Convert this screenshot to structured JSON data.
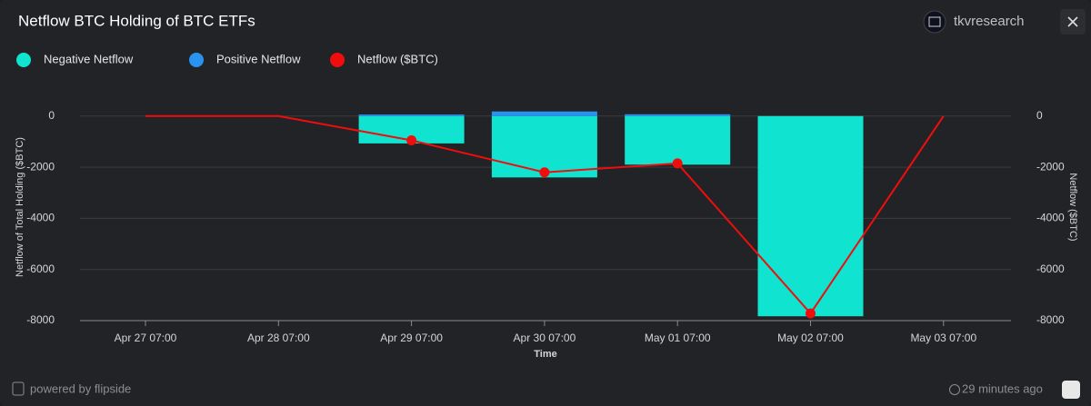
{
  "header": {
    "title": "Netflow BTC Holding of BTC ETFs",
    "brand": "tkvresearch"
  },
  "chart_data": {
    "type": "bar",
    "categories": [
      "Apr 27 07:00",
      "Apr 28 07:00",
      "Apr 29 07:00",
      "Apr 30 07:00",
      "May 01 07:00",
      "May 02 07:00",
      "May 03 07:00"
    ],
    "series": [
      {
        "name": "Negative Netflow",
        "type": "bar",
        "color": "#10e3cf",
        "values": [
          0,
          0,
          -1070,
          -2400,
          -1900,
          -7830,
          0
        ]
      },
      {
        "name": "Positive Netflow",
        "type": "bar",
        "color": "#2a93ef",
        "values": [
          0,
          0,
          60,
          180,
          70,
          0,
          0
        ]
      },
      {
        "name": "Netflow ($BTC)",
        "type": "line",
        "axis": "y2",
        "color": "#f00d0d",
        "values": [
          0,
          0,
          -950,
          -2200,
          -1850,
          -7720,
          0
        ]
      }
    ],
    "x_label": "Time",
    "y_label": "Netflow of Total Holding ($BTC)",
    "y2_label": "Netflow ($BTC)",
    "ylim": [
      -8000,
      1200
    ],
    "yticks": [
      -8000,
      -6000,
      -4000,
      -2000,
      0
    ],
    "y2lim": [
      -8000,
      1200
    ],
    "y2ticks": [
      -8000,
      -6000,
      -4000,
      -2000,
      0
    ],
    "grid": true
  },
  "footer": {
    "powered": "powered by flipside",
    "updated": "29 minutes ago"
  }
}
